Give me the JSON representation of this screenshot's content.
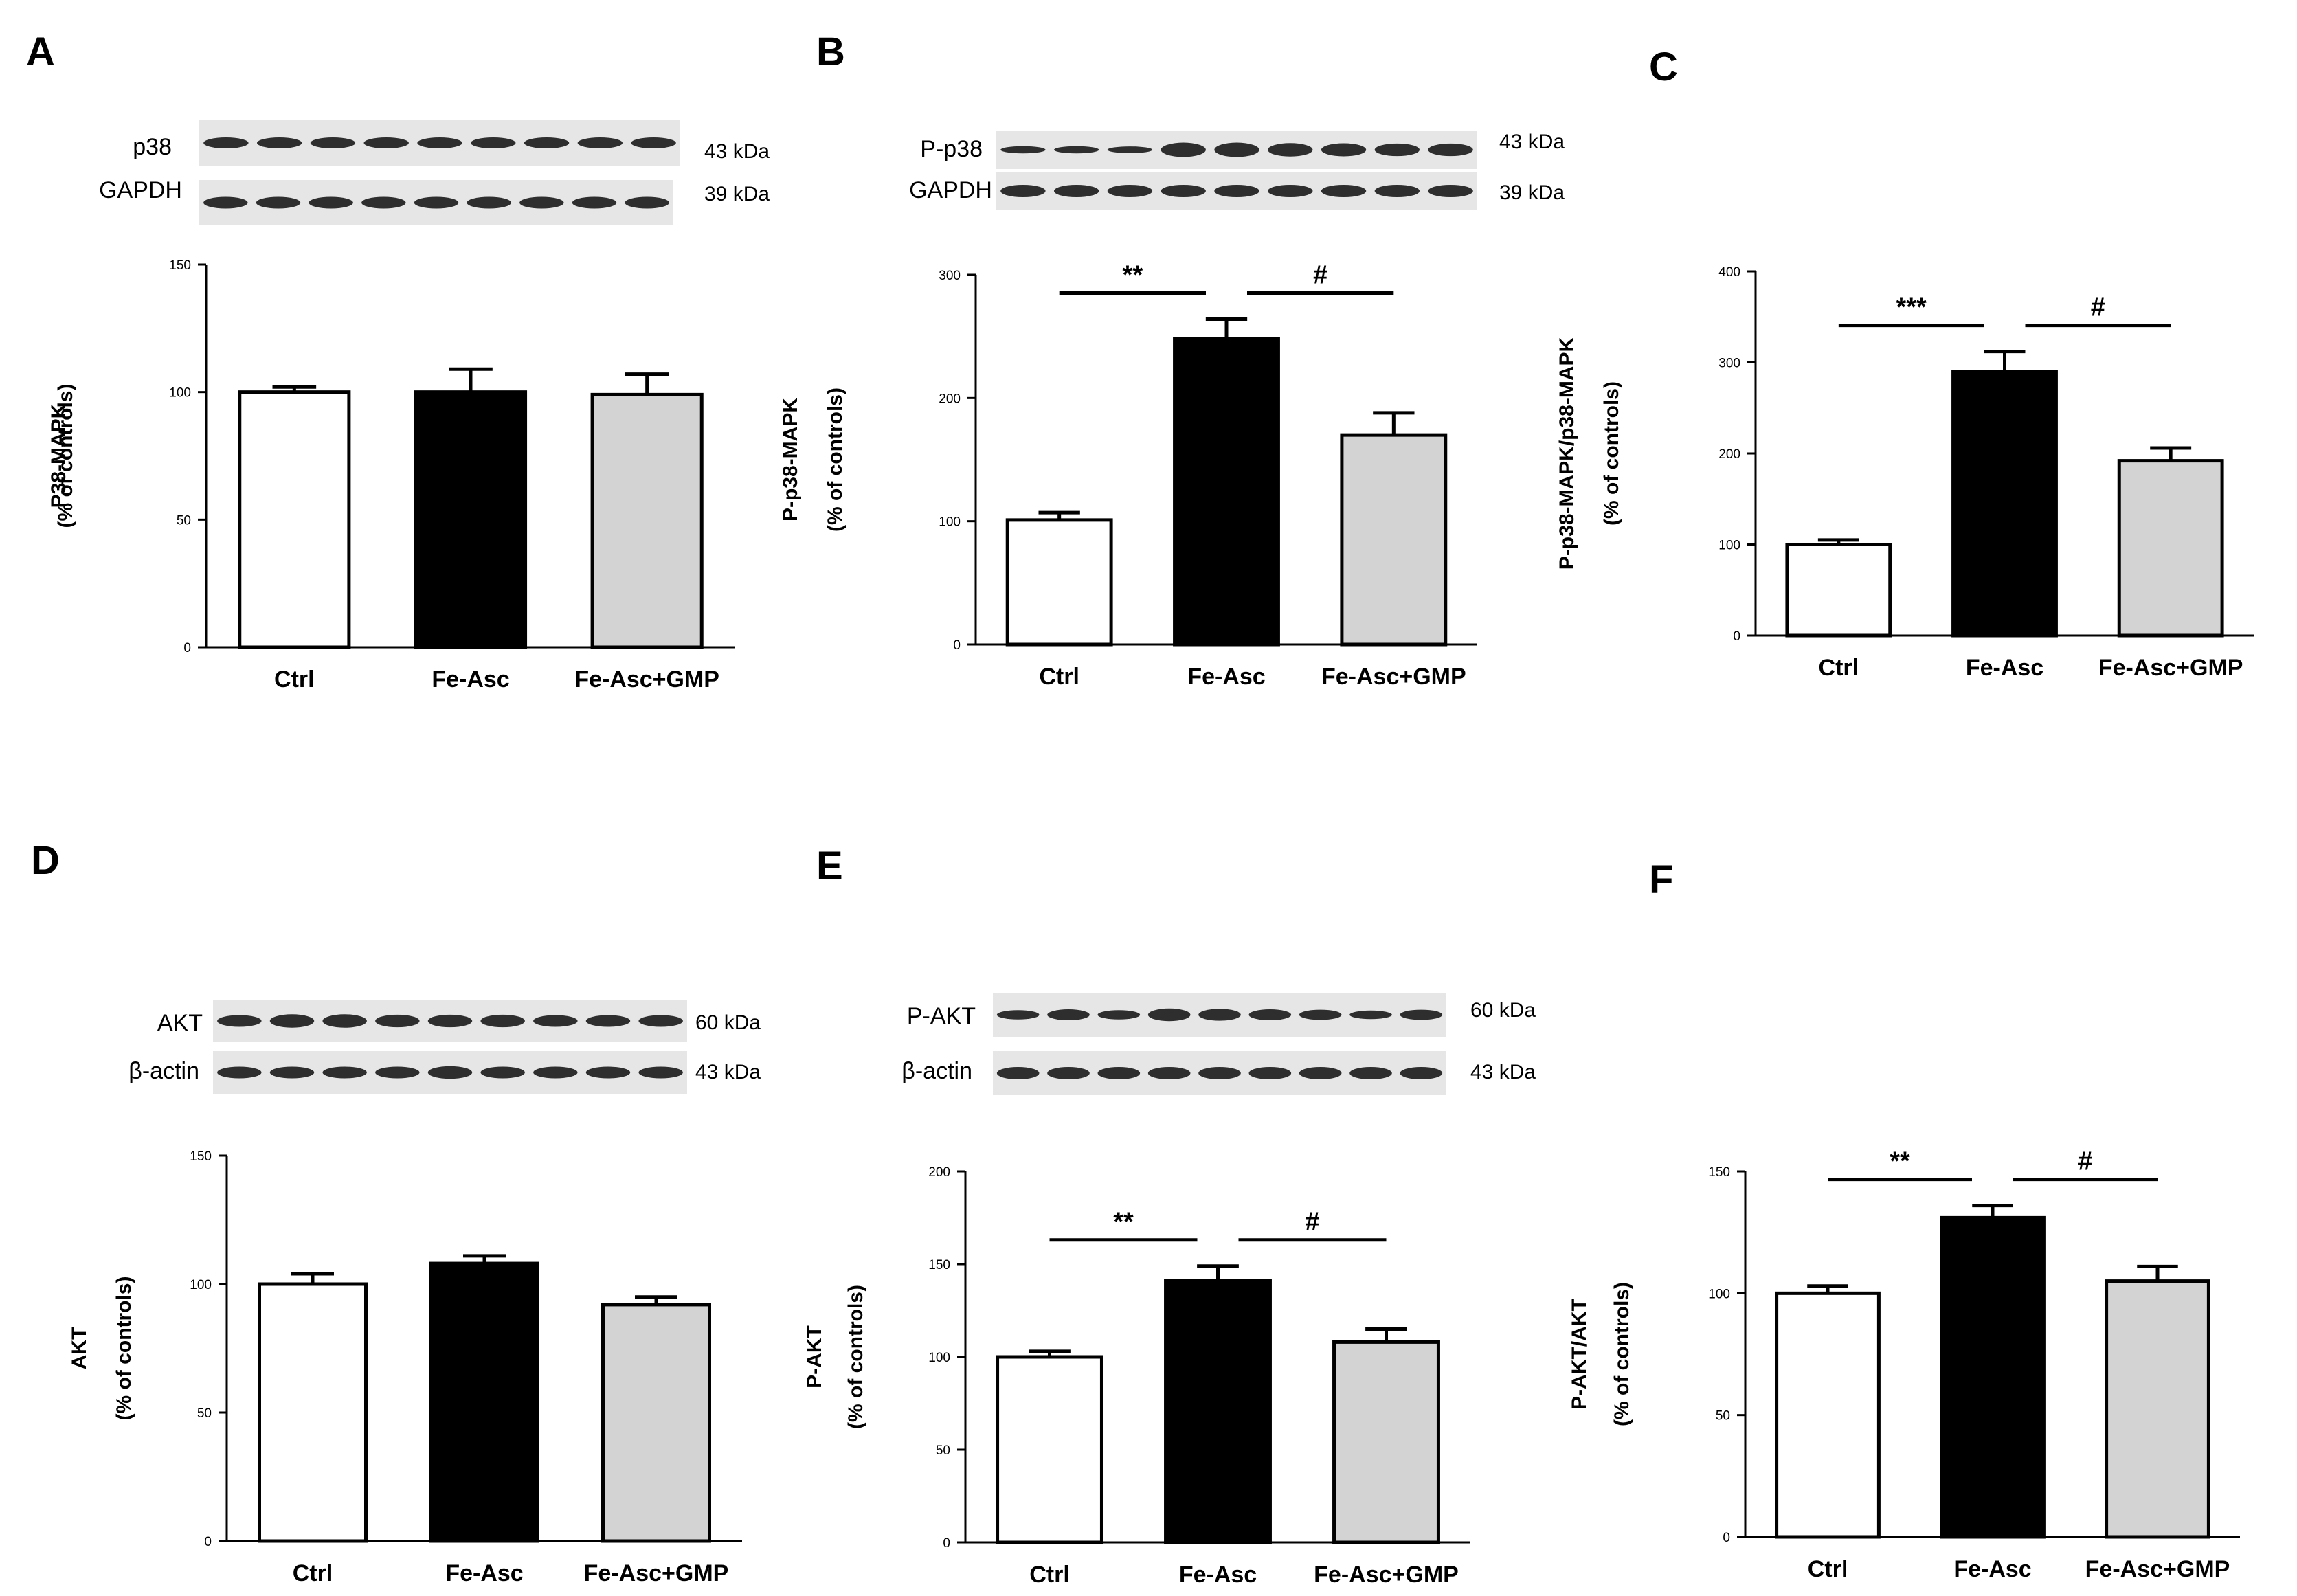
{
  "figure": {
    "panels": [
      {
        "letter": "A",
        "blots": [
          {
            "protein": "p38",
            "kda": "43 kDa"
          },
          {
            "protein": "GAPDH",
            "kda": "39 kDa"
          }
        ]
      },
      {
        "letter": "B",
        "blots": [
          {
            "protein": "P-p38",
            "kda": "43 kDa"
          },
          {
            "protein": "GAPDH",
            "kda": "39 kDa"
          }
        ]
      },
      {
        "letter": "C",
        "blots": []
      },
      {
        "letter": "D",
        "blots": [
          {
            "protein": "AKT",
            "kda": "60 kDa"
          },
          {
            "protein": "β-actin",
            "kda": "43 kDa"
          }
        ]
      },
      {
        "letter": "E",
        "blots": [
          {
            "protein": "P-AKT",
            "kda": "60 kDa"
          },
          {
            "protein": "β-actin",
            "kda": "43 kDa"
          }
        ]
      },
      {
        "letter": "F",
        "blots": []
      }
    ]
  },
  "colors": {
    "ctrl": "#ffffff",
    "fe_asc": "#000000",
    "fe_asc_gmp": "#d3d3d3",
    "axis": "#000000"
  },
  "chart_data": [
    {
      "panel": "A",
      "type": "bar",
      "categories": [
        "Ctrl",
        "Fe-Asc",
        "Fe-Asc+GMP"
      ],
      "values": [
        100,
        100,
        99
      ],
      "errors": [
        2,
        9,
        8
      ],
      "ylabel_line1": "P38-MAPK",
      "ylabel_line2": "(% of controls)",
      "ylim": [
        0,
        150
      ],
      "ticks": [
        0,
        50,
        100,
        150
      ],
      "significance": []
    },
    {
      "panel": "B",
      "type": "bar",
      "categories": [
        "Ctrl",
        "Fe-Asc",
        "Fe-Asc+GMP"
      ],
      "values": [
        101,
        248,
        170
      ],
      "errors": [
        6,
        16,
        18
      ],
      "ylabel_line1": "P-p38-MAPK",
      "ylabel_line2": "(% of controls)",
      "ylim": [
        0,
        300
      ],
      "ticks": [
        0,
        100,
        200,
        300
      ],
      "significance": [
        {
          "from": 0,
          "to": 1,
          "label": "**"
        },
        {
          "from": 1,
          "to": 2,
          "label": "#"
        }
      ]
    },
    {
      "panel": "C",
      "type": "bar",
      "categories": [
        "Ctrl",
        "Fe-Asc",
        "Fe-Asc+GMP"
      ],
      "values": [
        100,
        290,
        192
      ],
      "errors": [
        5,
        22,
        14
      ],
      "ylabel_line1": "P-p38-MAPK/p38-MAPK",
      "ylabel_line2": "(% of controls)",
      "ylim": [
        0,
        400
      ],
      "ticks": [
        0,
        100,
        200,
        300,
        400
      ],
      "significance": [
        {
          "from": 0,
          "to": 1,
          "label": "***"
        },
        {
          "from": 1,
          "to": 2,
          "label": "#"
        }
      ]
    },
    {
      "panel": "D",
      "type": "bar",
      "categories": [
        "Ctrl",
        "Fe-Asc",
        "Fe-Asc+GMP"
      ],
      "values": [
        100,
        108,
        92
      ],
      "errors": [
        4,
        3,
        3
      ],
      "ylabel_line1": "AKT",
      "ylabel_line2": "(% of controls)",
      "ylim": [
        0,
        150
      ],
      "ticks": [
        0,
        50,
        100,
        150
      ],
      "significance": []
    },
    {
      "panel": "E",
      "type": "bar",
      "categories": [
        "Ctrl",
        "Fe-Asc",
        "Fe-Asc+GMP"
      ],
      "values": [
        100,
        141,
        108
      ],
      "errors": [
        3,
        8,
        7
      ],
      "ylabel_line1": "P-AKT",
      "ylabel_line2": "(% of controls)",
      "ylim": [
        0,
        200
      ],
      "ticks": [
        0,
        50,
        100,
        150,
        200
      ],
      "significance": [
        {
          "from": 0,
          "to": 1,
          "label": "**"
        },
        {
          "from": 1,
          "to": 2,
          "label": "#"
        }
      ]
    },
    {
      "panel": "F",
      "type": "bar",
      "categories": [
        "Ctrl",
        "Fe-Asc",
        "Fe-Asc+GMP"
      ],
      "values": [
        100,
        131,
        105
      ],
      "errors": [
        3,
        5,
        6
      ],
      "ylabel_line1": "P-AKT/AKT",
      "ylabel_line2": "(% of controls)",
      "ylim": [
        0,
        150
      ],
      "ticks": [
        0,
        50,
        100,
        150
      ],
      "significance": [
        {
          "from": 0,
          "to": 1,
          "label": "**"
        },
        {
          "from": 1,
          "to": 2,
          "label": "#"
        }
      ]
    }
  ]
}
